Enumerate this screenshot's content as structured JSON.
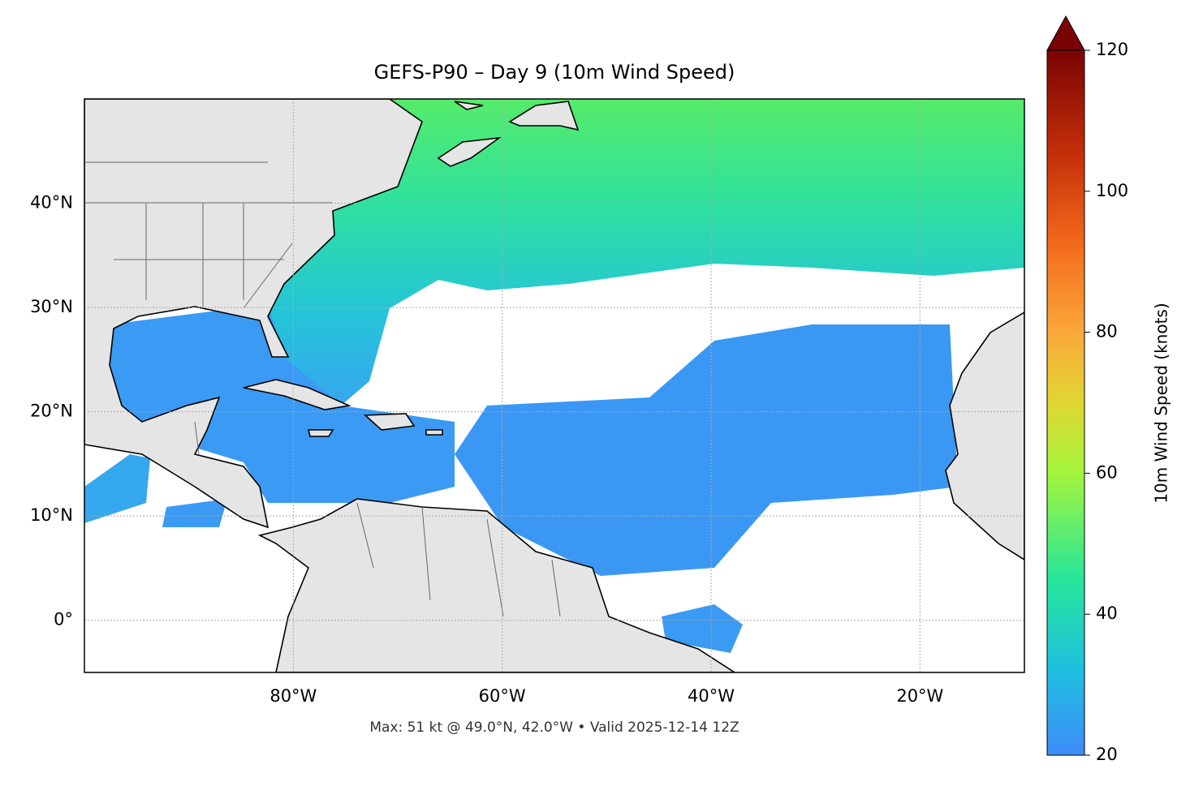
{
  "chart_data": {
    "type": "map",
    "title": "GEFS-P90 – Day 9 (10m Wind Speed)",
    "note": "Max: 51 kt @ 49.0°N, 42.0°W • Valid 2025-12-14 12Z",
    "xlim": [
      -100,
      -10
    ],
    "ylim": [
      -5,
      50
    ],
    "xticks": [
      {
        "value": -80,
        "label": "80°W"
      },
      {
        "value": -60,
        "label": "60°W"
      },
      {
        "value": -40,
        "label": "40°W"
      },
      {
        "value": -20,
        "label": "20°W"
      }
    ],
    "yticks": [
      {
        "value": 0,
        "label": "0°"
      },
      {
        "value": 10,
        "label": "10°N"
      },
      {
        "value": 20,
        "label": "20°N"
      },
      {
        "value": 30,
        "label": "30°N"
      },
      {
        "value": 40,
        "label": "40°N"
      }
    ],
    "grid": true,
    "colorbar": {
      "label": "10m Wind Speed (knots)",
      "lim": [
        20,
        120
      ],
      "ticks": [
        20,
        40,
        60,
        80,
        100,
        120
      ],
      "extend": "max"
    }
  }
}
